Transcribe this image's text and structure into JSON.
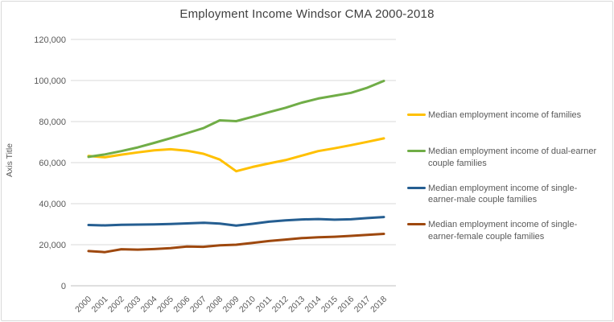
{
  "chart_data": {
    "type": "line",
    "title": "Employment Income Windsor CMA 2000-2018",
    "xlabel": "",
    "ylabel": "Axis Title",
    "ylim": [
      0,
      120000
    ],
    "ytick_step": 20000,
    "grid": true,
    "legend_position": "right",
    "categories": [
      "2000",
      "2001",
      "2002",
      "2003",
      "2004",
      "2005",
      "2006",
      "2007",
      "2008",
      "2009",
      "2010",
      "2011",
      "2012",
      "2013",
      "2014",
      "2015",
      "2016",
      "2017",
      "2018"
    ],
    "series": [
      {
        "name": "Median employment income of families",
        "color": "#FFC000",
        "values": [
          63200,
          62600,
          63900,
          65000,
          66000,
          66500,
          65800,
          64300,
          61500,
          55800,
          57900,
          59600,
          61200,
          63400,
          65600,
          67000,
          68500,
          70100,
          71800
        ]
      },
      {
        "name": "Median employment income of dual-earner couple families",
        "color": "#70AD47",
        "values": [
          62800,
          64000,
          65600,
          67400,
          69600,
          71900,
          74300,
          76800,
          80600,
          80200,
          82300,
          84600,
          86700,
          89200,
          91200,
          92600,
          94000,
          96500,
          99800
        ]
      },
      {
        "name": "Median employment income of single-earner-male couple families",
        "color": "#255E91",
        "values": [
          29600,
          29400,
          29700,
          29800,
          29900,
          30100,
          30400,
          30700,
          30300,
          29300,
          30200,
          31200,
          31900,
          32300,
          32500,
          32200,
          32400,
          33000,
          33500
        ]
      },
      {
        "name": "Median employment income of single-earner-female couple families",
        "color": "#9E480E",
        "values": [
          16900,
          16400,
          17800,
          17600,
          17900,
          18300,
          19100,
          19000,
          19700,
          20000,
          20900,
          21800,
          22500,
          23200,
          23600,
          23900,
          24300,
          24800,
          25300
        ]
      }
    ],
    "axis_colors": {
      "gridline": "#d9d9d9",
      "axis_line": "#bfbfbf",
      "tick_label": "#595959",
      "title": "#404040"
    }
  }
}
